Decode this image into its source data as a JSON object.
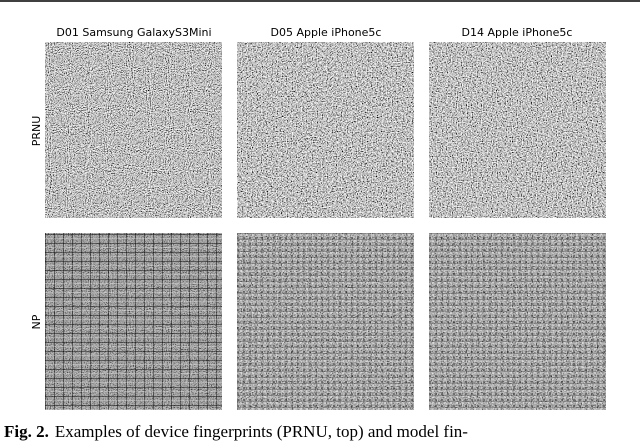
{
  "figure": {
    "columns": [
      "D01 Samsung GalaxyS3Mini",
      "D05 Apple iPhone5c",
      "D14 Apple iPhone5c"
    ],
    "rows": [
      "PRNU",
      "NP"
    ],
    "caption": {
      "label": "Fig. 2.",
      "text": "Examples of device fingerprints (PRNU, top) and model fin-"
    }
  }
}
